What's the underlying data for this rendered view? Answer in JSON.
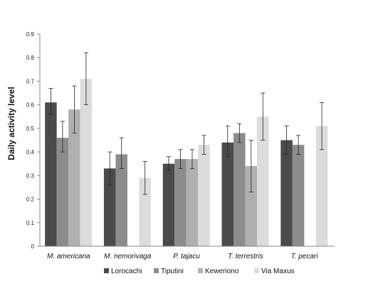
{
  "chart_data": {
    "type": "bar",
    "title": "",
    "xlabel": "",
    "ylabel": "Daily activity level",
    "ylim": [
      0,
      0.9
    ],
    "yticks": [
      "0",
      "0.1",
      "0.2",
      "0.3",
      "0.4",
      "0.5",
      "0.6",
      "0.7",
      "0.8",
      "0.9"
    ],
    "grid": false,
    "legend_position": "bottom",
    "categories": [
      "M. americana",
      "M. nemorivaga",
      "P. tajacu",
      "T. terrestris",
      "T. pecari"
    ],
    "series": [
      {
        "name": "Lorocachi",
        "color": "#4a4a4a",
        "values": [
          0.61,
          0.33,
          0.35,
          0.44,
          0.45
        ],
        "err_low": [
          0.56,
          0.26,
          0.32,
          0.38,
          0.39
        ],
        "err_high": [
          0.67,
          0.4,
          0.38,
          0.51,
          0.51
        ]
      },
      {
        "name": "Tiputini",
        "color": "#8c8c8c",
        "values": [
          0.46,
          0.39,
          0.37,
          0.48,
          0.43
        ],
        "err_low": [
          0.4,
          0.33,
          0.33,
          0.44,
          0.39
        ],
        "err_high": [
          0.53,
          0.46,
          0.41,
          0.52,
          0.47
        ]
      },
      {
        "name": "Keweriono",
        "color": "#b0b0b0",
        "values": [
          0.58,
          null,
          0.37,
          0.34,
          null
        ],
        "err_low": [
          0.48,
          null,
          0.33,
          0.23,
          null
        ],
        "err_high": [
          0.68,
          null,
          0.41,
          0.45,
          null
        ]
      },
      {
        "name": "Via Maxus",
        "color": "#dcdcdc",
        "values": [
          0.71,
          0.29,
          0.43,
          0.55,
          0.51
        ],
        "err_low": [
          0.6,
          0.22,
          0.39,
          0.45,
          0.41
        ],
        "err_high": [
          0.82,
          0.36,
          0.47,
          0.65,
          0.61
        ]
      }
    ]
  }
}
